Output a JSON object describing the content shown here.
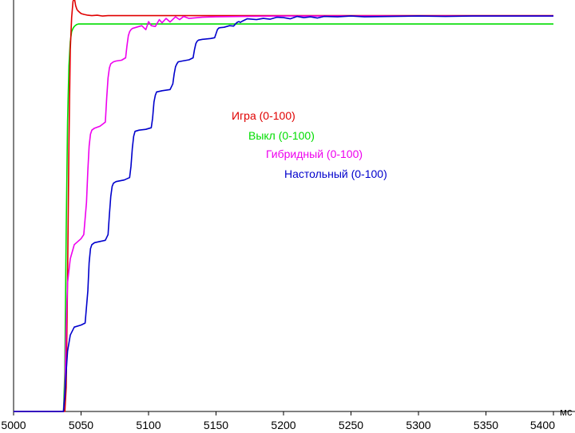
{
  "chart_data": {
    "type": "line",
    "xlabel": "мс",
    "xlim": [
      5000,
      5400
    ],
    "ylim": [
      0,
      100
    ],
    "xticks": [
      5000,
      5050,
      5100,
      5150,
      5200,
      5250,
      5300,
      5350,
      5400
    ],
    "grid": false,
    "legend_position": "center",
    "series": [
      {
        "name": "Игра (0-100)",
        "color": "#e00000",
        "x": [
          5000,
          5038,
          5039,
          5040,
          5041,
          5042,
          5043,
          5044,
          5045,
          5046,
          5047,
          5048,
          5049,
          5050,
          5052,
          5055,
          5058,
          5062,
          5066,
          5070,
          5080,
          5100,
          5150,
          5200,
          5250,
          5300,
          5350,
          5400
        ],
        "y": [
          0,
          0,
          6,
          33,
          66,
          90,
          98,
          102,
          103,
          101,
          100,
          99.6,
          99.3,
          99,
          98.8,
          98.6,
          98.5,
          98.6,
          98.4,
          98.5,
          98.5,
          98.5,
          98.5,
          98.5,
          98.5,
          98.5,
          98.5,
          98.5
        ]
      },
      {
        "name": "Выкл (0-100)",
        "color": "#00dd00",
        "x": [
          5000,
          5037,
          5038,
          5039,
          5040,
          5041,
          5042,
          5043,
          5044,
          5045,
          5046,
          5047,
          5048,
          5050,
          5055,
          5060,
          5080,
          5100,
          5150,
          5200,
          5250,
          5300,
          5350,
          5400
        ],
        "y": [
          0,
          0,
          10,
          45,
          72,
          86,
          92,
          94.5,
          95.3,
          95.8,
          96.1,
          96.3,
          96.4,
          96.4,
          96.4,
          96.4,
          96.4,
          96.4,
          96.4,
          96.4,
          96.4,
          96.4,
          96.4,
          96.4
        ]
      },
      {
        "name": "Гибридный (0-100)",
        "color": "#ee00ee",
        "x": [
          5000,
          5037,
          5038,
          5039,
          5040,
          5042,
          5045,
          5050,
          5052,
          5054,
          5055,
          5056,
          5057,
          5058,
          5060,
          5064,
          5068,
          5069,
          5070,
          5071,
          5072,
          5074,
          5076,
          5080,
          5083,
          5084,
          5085,
          5086,
          5087,
          5088,
          5090,
          5095,
          5098,
          5100,
          5102,
          5105,
          5108,
          5110,
          5113,
          5116,
          5120,
          5123,
          5126,
          5130,
          5140,
          5150,
          5170,
          5200,
          5250,
          5300,
          5350,
          5400
        ],
        "y": [
          0,
          0,
          5,
          22,
          32,
          38,
          41.5,
          43,
          44,
          52,
          60,
          66,
          69,
          70,
          70.5,
          71,
          72,
          78,
          83,
          85.5,
          86.5,
          87,
          87.2,
          87.4,
          88,
          91,
          93.5,
          94.5,
          95,
          95.3,
          95.5,
          96,
          95,
          97,
          96,
          95.8,
          97.5,
          96.7,
          97.8,
          96.9,
          98.2,
          97.5,
          98.3,
          97.8,
          98.1,
          98.2,
          98.3,
          98.4,
          98.4,
          98.4,
          98.4,
          98.4
        ]
      },
      {
        "name": "Настольный (0-100)",
        "color": "#0000cc",
        "x": [
          5000,
          5037,
          5038,
          5039,
          5040,
          5042,
          5045,
          5050,
          5053,
          5055,
          5056,
          5057,
          5058,
          5060,
          5064,
          5068,
          5070,
          5071,
          5072,
          5073,
          5074,
          5076,
          5082,
          5086,
          5087,
          5088,
          5089,
          5090,
          5093,
          5098,
          5102,
          5103,
          5104,
          5105,
          5106,
          5110,
          5116,
          5118,
          5119,
          5120,
          5121,
          5122,
          5125,
          5130,
          5133,
          5134,
          5135,
          5136,
          5137,
          5140,
          5146,
          5149,
          5150,
          5151,
          5152,
          5153,
          5156,
          5160,
          5163,
          5165,
          5166,
          5167,
          5168,
          5170,
          5173,
          5180,
          5185,
          5190,
          5195,
          5200,
          5205,
          5210,
          5215,
          5220,
          5225,
          5230,
          5240,
          5250,
          5260,
          5280,
          5300,
          5320,
          5340,
          5360,
          5380,
          5400
        ],
        "y": [
          0,
          0,
          4,
          10,
          15,
          19,
          21,
          21.5,
          22,
          30,
          37,
          40.5,
          41.5,
          42,
          42.3,
          42.6,
          44,
          49,
          53.5,
          56,
          56.8,
          57.2,
          57.6,
          58.2,
          61,
          65.5,
          68.5,
          69.7,
          70,
          70.2,
          70.6,
          73,
          77,
          78.7,
          79.5,
          79.8,
          80.1,
          81.5,
          84,
          85.8,
          86.5,
          87,
          87.2,
          87.5,
          88,
          90,
          91.5,
          92.1,
          92.4,
          92.6,
          92.8,
          93,
          94,
          95,
          95.4,
          95.5,
          95.6,
          96,
          95.9,
          96.6,
          96.9,
          97,
          96.8,
          97.2,
          97.7,
          97.5,
          97.8,
          97.6,
          98.1,
          98,
          97.7,
          98.3,
          98,
          98.2,
          97.9,
          98.3,
          98.2,
          98.4,
          98.2,
          98.3,
          98.4,
          98.3,
          98.4,
          98.4,
          98.4,
          98.4
        ]
      }
    ]
  }
}
